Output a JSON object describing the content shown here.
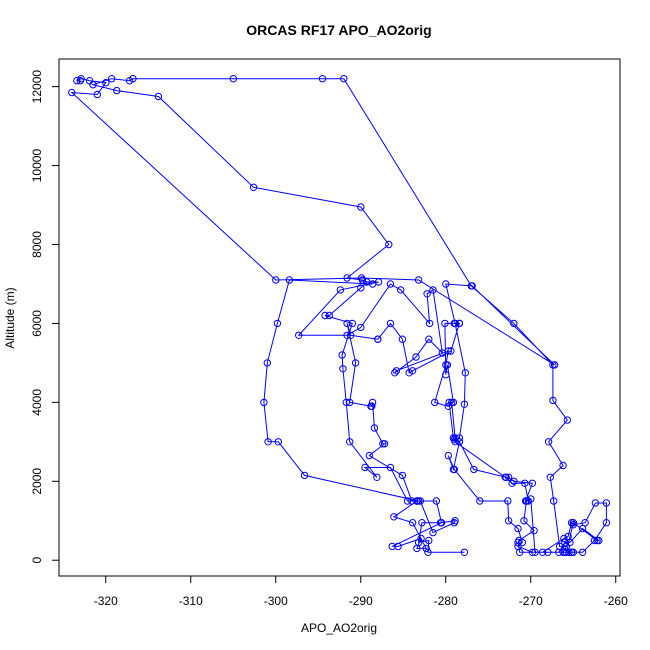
{
  "chart_data": {
    "type": "line",
    "title": "ORCAS RF17 APO_AO2orig",
    "xlabel": "APO_AO2orig",
    "ylabel": "Altitude (m)",
    "xlim": [
      -325.5,
      -259.5
    ],
    "ylim": [
      -400,
      12700
    ],
    "xticks": [
      -320,
      -310,
      -300,
      -290,
      -280,
      -270,
      -260
    ],
    "yticks": [
      0,
      2000,
      4000,
      6000,
      8000,
      10000,
      12000
    ],
    "grid": false,
    "legend": "none",
    "marker": "open-circle",
    "color": "#0000ff",
    "series": [
      {
        "values": [
          [
            -277.8,
            200
          ],
          [
            -282.1,
            200
          ],
          [
            -282.0,
            500
          ],
          [
            -283.2,
            450
          ],
          [
            -282.8,
            950
          ],
          [
            -280.6,
            950
          ],
          [
            -278.9,
            1000
          ],
          [
            -279.0,
            950
          ],
          [
            -281.5,
            700
          ],
          [
            -283.0,
            1500
          ],
          [
            -284.5,
            1500
          ],
          [
            -286.5,
            2350
          ],
          [
            -289.5,
            2350
          ],
          [
            -288.1,
            2100
          ],
          [
            -291.3,
            3000
          ],
          [
            -291.7,
            4000
          ],
          [
            -292.1,
            4850
          ],
          [
            -292.2,
            5200
          ],
          [
            -291.0,
            6000
          ],
          [
            -294.2,
            6200
          ],
          [
            -293.7,
            6200
          ],
          [
            -290.0,
            6900
          ],
          [
            -289.3,
            7050
          ],
          [
            -287.9,
            7050
          ],
          [
            -292.4,
            6850
          ],
          [
            -297.3,
            5700
          ],
          [
            -291.6,
            5700
          ],
          [
            -290.0,
            5900
          ],
          [
            -286.5,
            7000
          ],
          [
            -285.3,
            6850
          ],
          [
            -281.9,
            6000
          ],
          [
            -282.2,
            6750
          ],
          [
            -281.5,
            6850
          ],
          [
            -280.4,
            5250
          ],
          [
            -282.0,
            5600
          ],
          [
            -283.5,
            5150
          ],
          [
            -286.0,
            4750
          ],
          [
            -285.8,
            4800
          ],
          [
            -279.7,
            5300
          ],
          [
            -280.0,
            4950
          ],
          [
            -281.3,
            4000
          ],
          [
            -279.7,
            3900
          ],
          [
            -279.3,
            4000
          ],
          [
            -278.9,
            3100
          ],
          [
            -279.0,
            3050
          ],
          [
            -278.4,
            3000
          ],
          [
            -276.7,
            2300
          ],
          [
            -272.9,
            2100
          ],
          [
            -272.2,
            1950
          ],
          [
            -270.7,
            1950
          ],
          [
            -270.3,
            1500
          ],
          [
            -270.5,
            1500
          ],
          [
            -270.8,
            1000
          ],
          [
            -269.6,
            750
          ],
          [
            -271.4,
            500
          ],
          [
            -271.5,
            450
          ],
          [
            -271.3,
            200
          ],
          [
            -268.6,
            200
          ],
          [
            -266.1,
            550
          ],
          [
            -265.6,
            600
          ],
          [
            -265.2,
            950
          ],
          [
            -265.0,
            900
          ],
          [
            -263.6,
            950
          ],
          [
            -262.4,
            1450
          ],
          [
            -261.1,
            1450
          ],
          [
            -261.1,
            950
          ],
          [
            -262.5,
            500
          ],
          [
            -263.9,
            200
          ],
          [
            -265.2,
            200
          ],
          [
            -265.2,
            200
          ],
          [
            -265.0,
            200
          ],
          [
            -266.2,
            200
          ],
          [
            -265.8,
            350
          ],
          [
            -266.6,
            350
          ],
          [
            -267.3,
            1500
          ],
          [
            -267.7,
            2100
          ],
          [
            -266.2,
            2400
          ],
          [
            -267.9,
            3000
          ],
          [
            -265.7,
            3550
          ],
          [
            -267.4,
            4050
          ],
          [
            -267.4,
            4950
          ],
          [
            -272.0,
            6000
          ],
          [
            -277.0,
            6950
          ],
          [
            -292.0,
            12200
          ],
          [
            -294.5,
            12200
          ],
          [
            -305.0,
            12200
          ],
          [
            -316.8,
            12200
          ],
          [
            -317.2,
            12150
          ],
          [
            -319.3,
            12200
          ],
          [
            -321.5,
            12050
          ],
          [
            -318.7,
            11900
          ],
          [
            -313.8,
            11750
          ],
          [
            -302.6,
            9450
          ],
          [
            -290.0,
            8950
          ],
          [
            -286.7,
            8000
          ],
          [
            -291.6,
            7150
          ],
          [
            -289.8,
            7100
          ],
          [
            -288.6,
            7000
          ],
          [
            -298.4,
            7100
          ],
          [
            -299.8,
            6000
          ],
          [
            -301.0,
            5000
          ],
          [
            -301.4,
            4000
          ],
          [
            -300.9,
            3000
          ],
          [
            -299.7,
            3000
          ],
          [
            -296.6,
            2150
          ],
          [
            -283.2,
            1500
          ],
          [
            -283.4,
            1500
          ],
          [
            -286.1,
            1100
          ],
          [
            -283.9,
            950
          ],
          [
            -282.3,
            300
          ],
          [
            -283.4,
            300
          ],
          [
            -282.9,
            550
          ],
          [
            -285.6,
            350
          ],
          [
            -286.3,
            350
          ],
          [
            -280.5,
            950
          ],
          [
            -281.1,
            1500
          ],
          [
            -283.4,
            1500
          ],
          [
            -284.0,
            1500
          ],
          [
            -285.1,
            2150
          ],
          [
            -289.0,
            2650
          ],
          [
            -287.2,
            2950
          ],
          [
            -287.4,
            2950
          ],
          [
            -288.4,
            3350
          ],
          [
            -288.6,
            4000
          ],
          [
            -288.7,
            3900
          ],
          [
            -288.8,
            3900
          ],
          [
            -291.3,
            4000
          ],
          [
            -290.6,
            5000
          ],
          [
            -291.6,
            6000
          ],
          [
            -291.2,
            5700
          ],
          [
            -288.0,
            5600
          ],
          [
            -288.0,
            5600
          ],
          [
            -286.5,
            6000
          ],
          [
            -285.1,
            5600
          ],
          [
            -284.3,
            4750
          ],
          [
            -283.9,
            4800
          ],
          [
            -279.4,
            5300
          ],
          [
            -278.4,
            6000
          ],
          [
            -278.4,
            6000
          ],
          [
            -279.0,
            6000
          ],
          [
            -278.9,
            6000
          ],
          [
            -280.1,
            6000
          ],
          [
            -280.0,
            4700
          ],
          [
            -279.8,
            4950
          ],
          [
            -279.1,
            4000
          ],
          [
            -279.6,
            4000
          ],
          [
            -279.1,
            3100
          ],
          [
            -278.4,
            3000
          ],
          [
            -279.1,
            2300
          ],
          [
            -279.7,
            2650
          ],
          [
            -279.0,
            2300
          ],
          [
            -276.0,
            1500
          ],
          [
            -272.7,
            1500
          ],
          [
            -272.6,
            1000
          ],
          [
            -271.5,
            800
          ],
          [
            -271.0,
            450
          ],
          [
            -271.5,
            350
          ],
          [
            -269.8,
            200
          ],
          [
            -268.0,
            200
          ],
          [
            -266.7,
            200
          ],
          [
            -266.0,
            450
          ],
          [
            -265.4,
            450
          ],
          [
            -263.9,
            800
          ],
          [
            -262.0,
            500
          ],
          [
            -262.2,
            500
          ],
          [
            -265.0,
            950
          ],
          [
            -265.8,
            200
          ],
          [
            -265.5,
            200
          ],
          [
            -266.0,
            200
          ],
          [
            -269.5,
            200
          ],
          [
            -270.0,
            1550
          ],
          [
            -270.6,
            1500
          ],
          [
            -269.8,
            1950
          ],
          [
            -272.0,
            2000
          ],
          [
            -272.6,
            2100
          ],
          [
            -273.0,
            2100
          ],
          [
            -278.9,
            3000
          ],
          [
            -278.4,
            3100
          ],
          [
            -277.8,
            3950
          ],
          [
            -277.7,
            4750
          ],
          [
            -278.9,
            6000
          ],
          [
            -280.0,
            7000
          ],
          [
            -276.9,
            6950
          ],
          [
            -267.2,
            4950
          ],
          [
            -283.2,
            7100
          ],
          [
            -289.9,
            7150
          ],
          [
            -300.0,
            7100
          ],
          [
            -324.0,
            11850
          ],
          [
            -321.0,
            11800
          ],
          [
            -320.0,
            12100
          ],
          [
            -321.9,
            12150
          ],
          [
            -322.9,
            12200
          ],
          [
            -323.4,
            12150
          ],
          [
            -323.0,
            12150
          ]
        ]
      }
    ]
  }
}
